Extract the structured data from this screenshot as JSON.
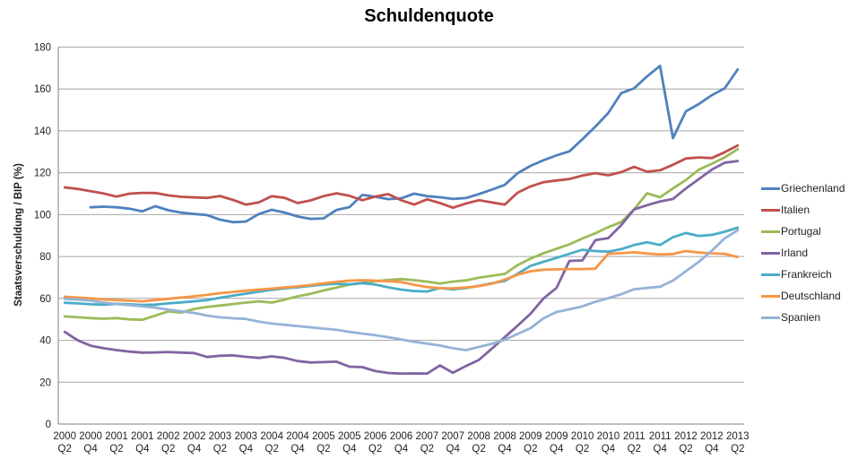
{
  "chart_data": {
    "type": "line",
    "title": "Schuldenquote",
    "ylabel": "Staatsverschuldung / BIP (%)",
    "xlabel": "",
    "ylim": [
      0,
      180
    ],
    "ytick_step": 20,
    "grid": "horizontal",
    "legend_position": "right",
    "x_frequency": "quarterly (labels every 2nd quarter)",
    "axis_color": "#808080",
    "gridline_color": "#a6a6a6",
    "tick_label_color": "#1f1f1f",
    "x_tick_labels": [
      "2000 Q2",
      "2000 Q4",
      "2001 Q2",
      "2001 Q4",
      "2002 Q2",
      "2002 Q4",
      "2003 Q2",
      "2003 Q4",
      "2004 Q2",
      "2004 Q4",
      "2005 Q2",
      "2005 Q4",
      "2006 Q2",
      "2006 Q4",
      "2007 Q2",
      "2007 Q4",
      "2008 Q2",
      "2008 Q4",
      "2009 Q2",
      "2009 Q4",
      "2010 Q2",
      "2010 Q4",
      "2011 Q2",
      "2011 Q4",
      "2012 Q2",
      "2012 Q4",
      "2013 Q2"
    ],
    "series": [
      {
        "name": "Griechenland",
        "color": "#4F81BD",
        "values": [
          null,
          null,
          103.5,
          103.8,
          103.5,
          102.8,
          101.6,
          104.0,
          102.1,
          101.0,
          100.3,
          99.8,
          97.6,
          96.4,
          96.7,
          100.3,
          102.3,
          101.0,
          99.1,
          98.0,
          98.2,
          102.2,
          103.6,
          109.4,
          108.5,
          107.4,
          107.8,
          110.0,
          108.8,
          108.3,
          107.5,
          107.9,
          109.8,
          111.9,
          114.2,
          119.8,
          123.3,
          126.0,
          128.3,
          130.2,
          136.0,
          142.0,
          148.5,
          158.0,
          160.3,
          166.0,
          171.0,
          136.5,
          149.3,
          152.8,
          157.0,
          160.3,
          169.3
        ]
      },
      {
        "name": "Italien",
        "color": "#C0504D",
        "values": [
          113.0,
          112.3,
          111.2,
          110.1,
          108.6,
          110.0,
          110.4,
          110.3,
          109.2,
          108.5,
          108.2,
          108.0,
          108.9,
          107.0,
          104.8,
          105.8,
          108.8,
          108.0,
          105.5,
          106.8,
          108.8,
          110.2,
          109.0,
          106.9,
          108.6,
          109.8,
          106.9,
          104.8,
          107.3,
          105.5,
          103.3,
          105.3,
          106.9,
          105.8,
          104.8,
          110.5,
          113.5,
          115.5,
          116.3,
          117.0,
          118.6,
          119.8,
          118.8,
          120.3,
          122.8,
          120.5,
          121.2,
          123.8,
          126.8,
          127.3,
          127.0,
          129.8,
          133.0
        ]
      },
      {
        "name": "Portugal",
        "color": "#9BBB59",
        "values": [
          51.4,
          51.0,
          50.6,
          50.3,
          50.6,
          50.0,
          49.8,
          51.8,
          53.8,
          53.2,
          55.0,
          55.9,
          56.6,
          57.3,
          58.0,
          58.6,
          58.0,
          59.4,
          61.0,
          62.2,
          63.8,
          65.2,
          66.6,
          67.4,
          68.2,
          68.8,
          69.2,
          68.7,
          68.0,
          67.1,
          68.0,
          68.6,
          69.9,
          70.8,
          71.7,
          75.9,
          79.0,
          81.6,
          83.7,
          85.8,
          88.6,
          91.1,
          94.0,
          96.5,
          102.5,
          110.2,
          108.3,
          112.5,
          116.5,
          121.5,
          124.3,
          127.3,
          131.3
        ]
      },
      {
        "name": "Irland",
        "color": "#8064A2",
        "values": [
          44.0,
          40.0,
          37.4,
          36.2,
          35.3,
          34.6,
          34.1,
          34.2,
          34.4,
          34.1,
          33.9,
          32.0,
          32.6,
          32.8,
          32.1,
          31.6,
          32.3,
          31.6,
          30.1,
          29.4,
          29.6,
          29.8,
          27.4,
          27.2,
          25.3,
          24.4,
          24.1,
          24.2,
          24.1,
          28.0,
          24.5,
          27.7,
          30.6,
          36.0,
          41.5,
          47.0,
          52.7,
          60.0,
          65.0,
          77.9,
          78.1,
          87.8,
          88.8,
          95.0,
          102.5,
          104.5,
          106.3,
          107.5,
          112.5,
          117.0,
          121.5,
          124.8,
          125.6
        ]
      },
      {
        "name": "Frankreich",
        "color": "#4BACC6",
        "values": [
          57.9,
          57.6,
          57.2,
          57.0,
          57.4,
          57.2,
          56.9,
          57.0,
          57.6,
          58.1,
          58.6,
          59.2,
          60.3,
          61.3,
          62.3,
          63.2,
          64.1,
          64.8,
          65.3,
          66.0,
          66.6,
          67.0,
          66.7,
          67.3,
          66.6,
          65.3,
          64.2,
          63.5,
          63.3,
          65.0,
          64.3,
          64.9,
          66.0,
          67.2,
          68.3,
          71.8,
          75.5,
          77.5,
          79.3,
          81.3,
          83.2,
          82.6,
          82.3,
          83.5,
          85.5,
          86.8,
          85.5,
          89.2,
          91.2,
          89.8,
          90.3,
          91.8,
          93.8
        ]
      },
      {
        "name": "Deutschland",
        "color": "#F79646",
        "values": [
          60.8,
          60.4,
          60.0,
          59.5,
          59.2,
          58.9,
          58.6,
          59.2,
          59.8,
          60.4,
          61.0,
          61.7,
          62.5,
          63.1,
          63.7,
          64.2,
          64.7,
          65.2,
          65.7,
          66.4,
          67.2,
          67.9,
          68.5,
          68.7,
          68.5,
          68.2,
          67.8,
          66.5,
          65.4,
          64.9,
          64.8,
          65.2,
          65.9,
          67.0,
          69.0,
          71.3,
          73.0,
          73.7,
          73.9,
          74.0,
          74.0,
          74.2,
          81.3,
          81.6,
          82.0,
          81.4,
          81.0,
          81.2,
          82.6,
          81.9,
          81.5,
          81.3,
          79.8
        ]
      },
      {
        "name": "Spanien",
        "color": "#95B3D7",
        "values": [
          59.8,
          59.4,
          58.9,
          58.0,
          57.3,
          56.8,
          56.2,
          55.6,
          54.6,
          53.8,
          53.1,
          51.8,
          51.0,
          50.5,
          50.2,
          48.9,
          48.0,
          47.4,
          46.8,
          46.2,
          45.6,
          45.0,
          44.0,
          43.2,
          42.4,
          41.5,
          40.4,
          39.3,
          38.4,
          37.5,
          36.2,
          35.3,
          36.8,
          38.3,
          40.3,
          43.0,
          45.8,
          50.5,
          53.5,
          54.8,
          56.2,
          58.4,
          60.1,
          62.0,
          64.4,
          65.0,
          65.6,
          68.5,
          73.0,
          77.5,
          82.7,
          88.7,
          92.5
        ]
      }
    ]
  }
}
